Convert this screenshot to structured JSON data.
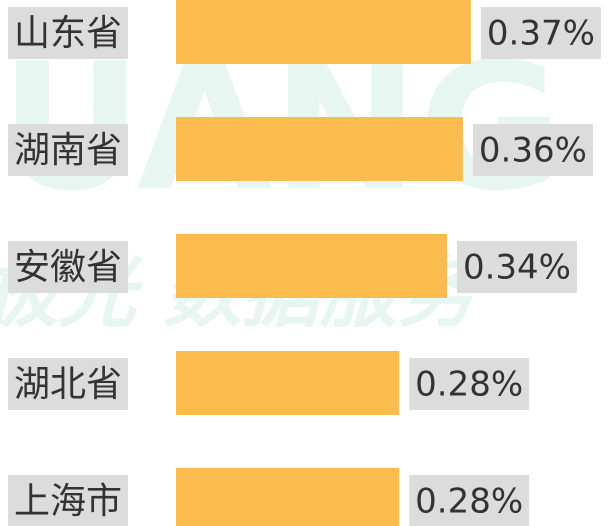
{
  "chart_data": {
    "type": "bar",
    "orientation": "horizontal",
    "categories": [
      "山东省",
      "湖南省",
      "安徽省",
      "湖北省",
      "上海市"
    ],
    "values": [
      0.37,
      0.36,
      0.34,
      0.28,
      0.28
    ],
    "value_labels": [
      "0.37%",
      "0.36%",
      "0.34%",
      "0.28%",
      "0.28%"
    ],
    "color": "#fbbb4d",
    "watermark": [
      "UANG",
      "极光 数据服务"
    ]
  }
}
